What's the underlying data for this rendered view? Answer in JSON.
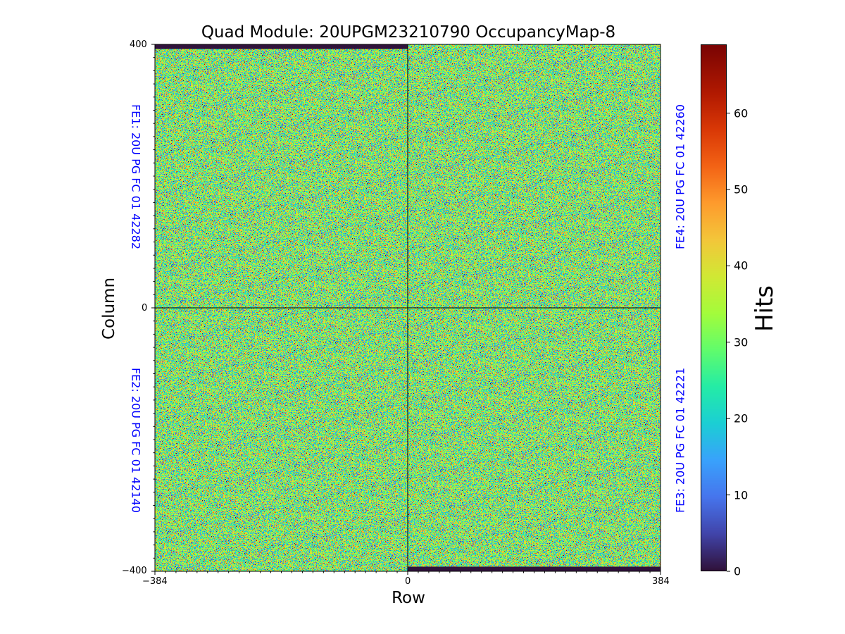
{
  "chart_data": {
    "type": "heatmap",
    "title": "Quad Module: 20UPGM23210790 OccupancyMap-8",
    "xlabel": "Row",
    "ylabel": "Column",
    "xlim": [
      -384,
      384
    ],
    "ylim": [
      -400,
      400
    ],
    "x_ticks": [
      "−384",
      "0",
      "384"
    ],
    "y_ticks": [
      "400",
      "0",
      "−400"
    ],
    "colormap": "turbo",
    "colorbar": {
      "label": "Hits",
      "range": [
        0,
        69
      ],
      "ticks": [
        "0",
        "10",
        "20",
        "30",
        "40",
        "50",
        "60"
      ],
      "tick_values": [
        0,
        10,
        20,
        30,
        40,
        50,
        60
      ]
    },
    "value_distribution": {
      "mean": 31,
      "spread": 12
    },
    "dead_strips": [
      {
        "x_range": [
          -384,
          0
        ],
        "y_range": [
          393,
          400
        ],
        "value": 0
      },
      {
        "x_range": [
          0,
          384
        ],
        "y_range": [
          -400,
          -393
        ],
        "value": 0
      }
    ],
    "chips": [
      {
        "label": "FE1: 20U PG FC 01 42282",
        "quadrant": "top-left"
      },
      {
        "label": "FE2: 20U PG FC 01 42140",
        "quadrant": "bottom-left"
      },
      {
        "label": "FE3: 20U PG FC 01 42221",
        "quadrant": "bottom-right"
      },
      {
        "label": "FE4: 20U PG FC 01 42260",
        "quadrant": "top-right"
      }
    ],
    "label_color": "#0000ff"
  }
}
